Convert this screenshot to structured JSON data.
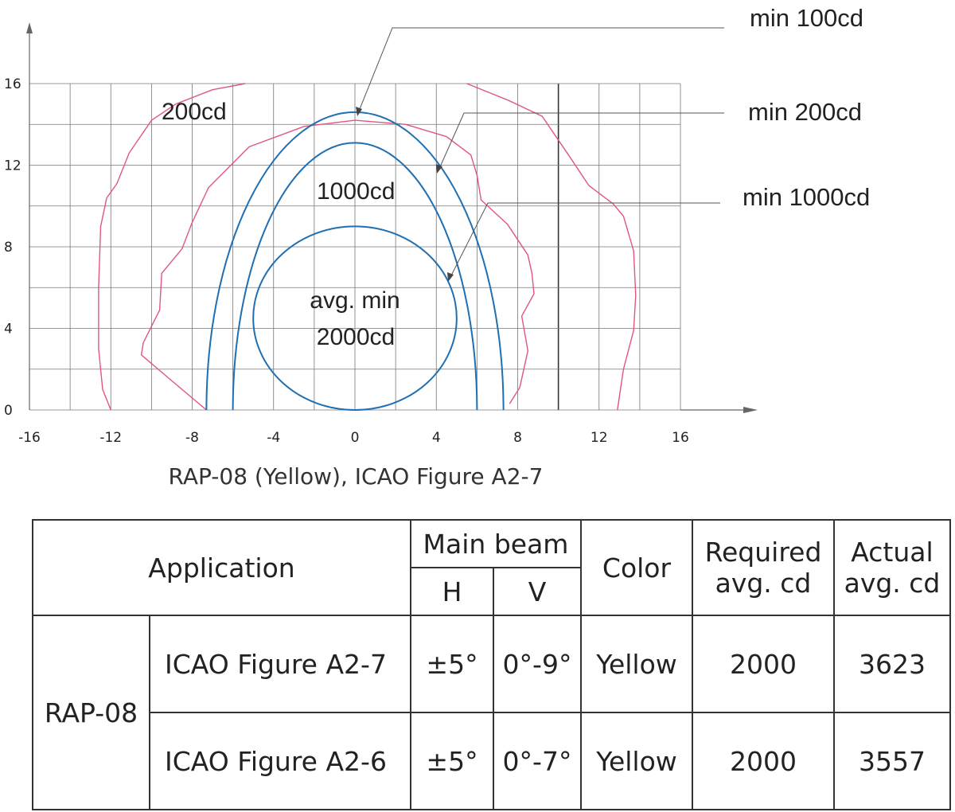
{
  "chart_data": {
    "type": "isocandela",
    "x_ticks": [
      "-16",
      "-12",
      "-8",
      "-4",
      "0",
      "4",
      "8",
      "12",
      "16"
    ],
    "y_ticks": [
      "16",
      "12",
      "8",
      "4",
      "0"
    ],
    "xlim": [
      -16,
      16
    ],
    "ylim": [
      0,
      16
    ],
    "grid": true,
    "caption": "RAP-08 (Yellow), ICAO Figure A2-7",
    "requirement_ellipses": [
      {
        "label": "min 100cd",
        "cx": 0,
        "cy": 0,
        "rx": 7.3,
        "ry": 14.6
      },
      {
        "label": "min 200cd",
        "cx": 0,
        "cy": 0,
        "rx": 6.0,
        "ry": 13.1
      },
      {
        "label": "min 1000cd",
        "cx": 0,
        "cy": 4.5,
        "rx": 5.0,
        "ry": 4.5
      }
    ],
    "measured_contours": [
      {
        "label": "200cd",
        "points": [
          [
            -12,
            0
          ],
          [
            -12.4,
            1
          ],
          [
            -12.6,
            3
          ],
          [
            -12.6,
            6
          ],
          [
            -12.5,
            9
          ],
          [
            -12.2,
            10.4
          ],
          [
            -11.7,
            11.1
          ],
          [
            -11.1,
            12.6
          ],
          [
            -10,
            14.2
          ],
          [
            -8.8,
            15
          ],
          [
            -7,
            15.7
          ],
          [
            -5.4,
            16
          ]
        ]
      },
      {
        "label": "1000cd",
        "points": [
          [
            -7.3,
            0
          ],
          [
            -9.2,
            1.6
          ],
          [
            -10.5,
            2.7
          ],
          [
            -10.4,
            3.3
          ],
          [
            -9.6,
            4.9
          ],
          [
            -9.5,
            6.7
          ],
          [
            -8.5,
            7.9
          ],
          [
            -8,
            9.2
          ],
          [
            -7.2,
            10.9
          ],
          [
            -5.2,
            12.9
          ],
          [
            -2.5,
            13.9
          ],
          [
            0,
            14.2
          ],
          [
            2.5,
            14
          ],
          [
            4.5,
            13.4
          ],
          [
            5.7,
            12.5
          ],
          [
            6,
            11.5
          ],
          [
            6.2,
            10.3
          ],
          [
            7.5,
            9.1
          ],
          [
            8.5,
            7.6
          ],
          [
            8.7,
            6.7
          ],
          [
            8.8,
            5.7
          ],
          [
            8.2,
            4.6
          ],
          [
            8.5,
            2.9
          ],
          [
            8.1,
            1.1
          ],
          [
            7.6,
            0.3
          ]
        ]
      },
      {
        "label": "",
        "points": [
          [
            5.5,
            16
          ],
          [
            7.5,
            15.2
          ],
          [
            9.2,
            14.4
          ],
          [
            10.5,
            12.5
          ],
          [
            11.5,
            11
          ],
          [
            12.7,
            10.1
          ],
          [
            13.2,
            9.5
          ],
          [
            13.7,
            7.8
          ],
          [
            13.8,
            5.6
          ],
          [
            13.7,
            3.9
          ],
          [
            13.2,
            2
          ],
          [
            12.9,
            0
          ]
        ]
      }
    ],
    "plot_labels": {
      "outer": "200cd",
      "middle": "1000cd",
      "center_line1": "avg. min",
      "center_line2": "2000cd"
    },
    "colors": {
      "requirement": "#1f6fb2",
      "measured": "#e0577a",
      "grid": "#555555",
      "axis": "#666666"
    }
  },
  "table": {
    "headers": {
      "application": "Application",
      "main_beam": "Main beam",
      "h": "H",
      "v": "V",
      "color": "Color",
      "required_line1": "Required",
      "required_line2": "avg. cd",
      "actual_line1": "Actual",
      "actual_line2": "avg. cd"
    },
    "group": "RAP-08",
    "rows": [
      {
        "application": "ICAO Figure A2-7",
        "h": "±5°",
        "v": "0°-9°",
        "color": "Yellow",
        "required": "2000",
        "actual": "3623"
      },
      {
        "application": "ICAO Figure A2-6",
        "h": "±5°",
        "v": "0°-7°",
        "color": "Yellow",
        "required": "2000",
        "actual": "3557"
      }
    ]
  }
}
